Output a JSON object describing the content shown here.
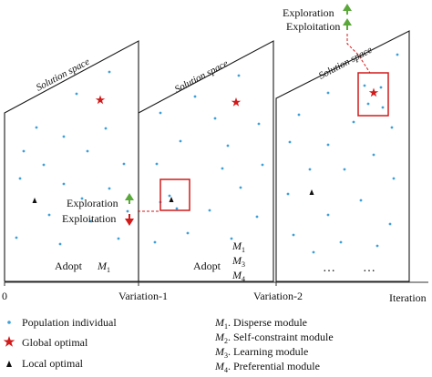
{
  "panels": [
    {
      "space_label": "Solution space",
      "adopt_label": "Adopt",
      "modules": [
        "M",
        "1"
      ],
      "module_list": []
    },
    {
      "space_label": "Solution space",
      "adopt_label": "Adopt",
      "modules": [],
      "module_list": [
        [
          "M",
          "1"
        ],
        [
          "M",
          "3"
        ],
        [
          "M",
          "4"
        ]
      ]
    },
    {
      "space_label": "Solution space",
      "ellipsis": [
        "…",
        "…"
      ]
    }
  ],
  "axis": {
    "start": "0",
    "ticks": [
      "Variation-1",
      "Variation-2"
    ],
    "end_label": "Iteration"
  },
  "annotations": {
    "exploration": "Exploration",
    "exploitation": "Exploitation"
  },
  "legend_left": [
    {
      "icon": "population-dot-icon",
      "label": "Population individual",
      "color": "#3fa0d8"
    },
    {
      "icon": "global-optimal-star-icon",
      "label": "Global optimal",
      "color": "#d11a1a"
    },
    {
      "icon": "local-optimal-triangle-icon",
      "label": "Local optimal",
      "color": "#111111"
    }
  ],
  "legend_right": [
    {
      "sym": "M",
      "sub": "1",
      "text": ". Disperse module"
    },
    {
      "sym": "M",
      "sub": "2",
      "text": ". Self-constraint module"
    },
    {
      "sym": "M",
      "sub": "3",
      "text": ". Learning module"
    },
    {
      "sym": "M",
      "sub": "4",
      "text": ". Preferential module"
    }
  ],
  "colors": {
    "dot": "#3fa0d8",
    "highlight": "#d11a1a",
    "up_arrow": "#5aa83a",
    "down_arrow": "#d11a1a"
  }
}
